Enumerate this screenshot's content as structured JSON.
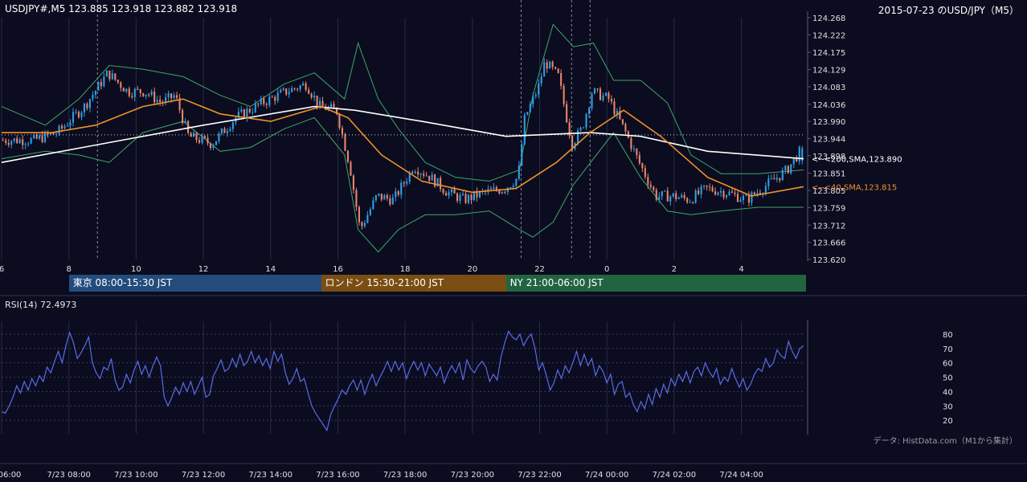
{
  "header": {
    "left": "USDJPY#,M5 123.885 123.918 123.882 123.918",
    "right": "2015-07-23 のUSD/JPY（M5）"
  },
  "colors": {
    "background": "#0b0c1f",
    "bull": "#2f9ee6",
    "bear": "#e8866e",
    "sma40": "#f0902a",
    "sma200": "#ffffff",
    "bollinger": "#3fa66a",
    "rsi": "#5a6be8",
    "tokyo": "#234c7d",
    "london": "#7a4e12",
    "ny": "#236440"
  },
  "sessions": [
    {
      "label": "東京 08:00-15:30 JST",
      "start_hour": 8,
      "end_hour": 15.5,
      "color": "#234c7d"
    },
    {
      "label": "ロンドン 15:30-21:00 JST",
      "start_hour": 15.5,
      "end_hour": 21,
      "color": "#7a4e12"
    },
    {
      "label": "NY 21:00-06:00 JST",
      "start_hour": 21,
      "end_hour": 30,
      "color": "#236440"
    }
  ],
  "rsi": {
    "label": "RSI(14) 72.4973",
    "ticks": [
      20,
      30,
      40,
      50,
      60,
      70,
      80
    ],
    "ylim": [
      10,
      90
    ],
    "series": [
      26,
      25,
      30,
      36,
      44,
      39,
      47,
      41,
      49,
      44,
      51,
      47,
      57,
      53,
      61,
      68,
      60,
      72,
      81,
      74,
      63,
      67,
      72,
      78,
      60,
      53,
      49,
      57,
      55,
      63,
      48,
      41,
      43,
      52,
      46,
      55,
      61,
      52,
      58,
      50,
      58,
      64,
      58,
      36,
      30,
      36,
      43,
      38,
      46,
      40,
      47,
      38,
      44,
      50,
      36,
      38,
      51,
      56,
      62,
      54,
      56,
      63,
      57,
      66,
      58,
      61,
      68,
      60,
      65,
      58,
      63,
      56,
      68,
      61,
      66,
      53,
      45,
      49,
      56,
      47,
      49,
      39,
      30,
      25,
      21,
      17,
      13,
      24,
      30,
      35,
      41,
      38,
      44,
      48,
      41,
      48,
      38,
      46,
      52,
      44,
      50,
      55,
      61,
      54,
      61,
      55,
      60,
      49,
      56,
      61,
      55,
      60,
      51,
      59,
      55,
      51,
      57,
      46,
      53,
      58,
      53,
      60,
      48,
      62,
      56,
      53,
      58,
      61,
      57,
      47,
      52,
      48,
      64,
      74,
      82,
      78,
      76,
      80,
      72,
      77,
      80,
      70,
      55,
      60,
      51,
      41,
      46,
      55,
      49,
      58,
      53,
      60,
      68,
      58,
      66,
      58,
      63,
      51,
      58,
      54,
      46,
      52,
      38,
      45,
      47,
      36,
      39,
      31,
      26,
      33,
      28,
      38,
      31,
      42,
      36,
      45,
      39,
      49,
      44,
      52,
      47,
      54,
      46,
      54,
      57,
      51,
      60,
      54,
      50,
      56,
      45,
      50,
      47,
      56,
      49,
      43,
      49,
      41,
      45,
      52,
      56,
      54,
      63,
      57,
      60,
      69,
      65,
      63,
      75,
      68,
      63,
      70,
      72
    ]
  },
  "chart_data": {
    "type": "candlestick",
    "title": "2015-07-23 のUSD/JPY（M5）",
    "symbol": "USDJPY#",
    "timeframe": "M5",
    "last_bar": {
      "open": 123.885,
      "high": 123.918,
      "low": 123.882,
      "close": 123.918
    },
    "ylim": [
      123.62,
      124.268
    ],
    "y_ticks": [
      124.268,
      124.222,
      124.175,
      124.129,
      124.083,
      124.036,
      123.99,
      123.944,
      123.898,
      123.851,
      123.805,
      123.759,
      123.712,
      123.666,
      123.62
    ],
    "x_hour_range": [
      6,
      29.85
    ],
    "x_ticks": [
      {
        "hour": 6,
        "label": "6"
      },
      {
        "hour": 8,
        "label": "8"
      },
      {
        "hour": 10,
        "label": "10"
      },
      {
        "hour": 12,
        "label": "12"
      },
      {
        "hour": 14,
        "label": "14"
      },
      {
        "hour": 16,
        "label": "16"
      },
      {
        "hour": 18,
        "label": "18"
      },
      {
        "hour": 20,
        "label": "20"
      },
      {
        "hour": 22,
        "label": "22"
      },
      {
        "hour": 24,
        "label": "0"
      },
      {
        "hour": 26,
        "label": "2"
      },
      {
        "hour": 28,
        "label": "4"
      }
    ],
    "bottom_ticks": [
      {
        "hour": 6,
        "label": "06:00"
      },
      {
        "hour": 8,
        "label": "7/23 08:00"
      },
      {
        "hour": 10,
        "label": "7/23 10:00"
      },
      {
        "hour": 12,
        "label": "7/23 12:00"
      },
      {
        "hour": 14,
        "label": "7/23 14:00"
      },
      {
        "hour": 16,
        "label": "7/23 16:00"
      },
      {
        "hour": 18,
        "label": "7/23 18:00"
      },
      {
        "hour": 20,
        "label": "7/23 20:00"
      },
      {
        "hour": 22,
        "label": "7/23 22:00"
      },
      {
        "hour": 24,
        "label": "7/24 00:00"
      },
      {
        "hour": 26,
        "label": "7/24 02:00"
      },
      {
        "hour": 28,
        "label": "7/24 04:00"
      }
    ],
    "reference_line": 123.954,
    "event_lines": [
      8.85,
      21.45,
      22.95,
      23.5
    ],
    "price_path": [
      {
        "hour": 6.0,
        "price": 123.94
      },
      {
        "hour": 7.0,
        "price": 123.94
      },
      {
        "hour": 7.7,
        "price": 123.96
      },
      {
        "hour": 8.5,
        "price": 124.03
      },
      {
        "hour": 9.2,
        "price": 124.12
      },
      {
        "hour": 9.8,
        "price": 124.07
      },
      {
        "hour": 10.3,
        "price": 124.07
      },
      {
        "hour": 10.8,
        "price": 124.04
      },
      {
        "hour": 11.2,
        "price": 124.06
      },
      {
        "hour": 11.6,
        "price": 123.95
      },
      {
        "hour": 12.3,
        "price": 123.93
      },
      {
        "hour": 13.0,
        "price": 124.0
      },
      {
        "hour": 13.8,
        "price": 124.04
      },
      {
        "hour": 14.5,
        "price": 124.07
      },
      {
        "hour": 15.1,
        "price": 124.09
      },
      {
        "hour": 15.5,
        "price": 124.03
      },
      {
        "hour": 16.0,
        "price": 124.02
      },
      {
        "hour": 16.4,
        "price": 123.87
      },
      {
        "hour": 16.7,
        "price": 123.7
      },
      {
        "hour": 17.2,
        "price": 123.79
      },
      {
        "hour": 17.7,
        "price": 123.78
      },
      {
        "hour": 18.3,
        "price": 123.87
      },
      {
        "hour": 18.8,
        "price": 123.84
      },
      {
        "hour": 19.3,
        "price": 123.8
      },
      {
        "hour": 19.8,
        "price": 123.78
      },
      {
        "hour": 20.4,
        "price": 123.8
      },
      {
        "hour": 21.0,
        "price": 123.81
      },
      {
        "hour": 21.4,
        "price": 123.84
      },
      {
        "hour": 21.6,
        "price": 124.0
      },
      {
        "hour": 22.0,
        "price": 124.08
      },
      {
        "hour": 22.2,
        "price": 124.15
      },
      {
        "hour": 22.6,
        "price": 124.11
      },
      {
        "hour": 23.0,
        "price": 123.93
      },
      {
        "hour": 23.3,
        "price": 123.97
      },
      {
        "hour": 23.6,
        "price": 124.07
      },
      {
        "hour": 24.1,
        "price": 124.05
      },
      {
        "hour": 24.6,
        "price": 123.96
      },
      {
        "hour": 25.0,
        "price": 123.88
      },
      {
        "hour": 25.5,
        "price": 123.79
      },
      {
        "hour": 26.0,
        "price": 123.79
      },
      {
        "hour": 26.5,
        "price": 123.78
      },
      {
        "hour": 27.0,
        "price": 123.81
      },
      {
        "hour": 27.6,
        "price": 123.8
      },
      {
        "hour": 28.2,
        "price": 123.78
      },
      {
        "hour": 28.8,
        "price": 123.82
      },
      {
        "hour": 29.4,
        "price": 123.86
      },
      {
        "hour": 29.85,
        "price": 123.918
      }
    ],
    "sma200": [
      {
        "hour": 6.0,
        "price": 123.88
      },
      {
        "hour": 9.0,
        "price": 123.93
      },
      {
        "hour": 12.0,
        "price": 123.98
      },
      {
        "hour": 15.3,
        "price": 124.03
      },
      {
        "hour": 16.5,
        "price": 124.02
      },
      {
        "hour": 18.5,
        "price": 123.99
      },
      {
        "hour": 21.0,
        "price": 123.95
      },
      {
        "hour": 23.5,
        "price": 123.96
      },
      {
        "hour": 25.0,
        "price": 123.95
      },
      {
        "hour": 27.0,
        "price": 123.91
      },
      {
        "hour": 29.85,
        "price": 123.89
      }
    ],
    "sma40": [
      {
        "hour": 6.0,
        "price": 123.96
      },
      {
        "hour": 7.5,
        "price": 123.96
      },
      {
        "hour": 8.8,
        "price": 123.98
      },
      {
        "hour": 10.2,
        "price": 124.03
      },
      {
        "hour": 11.4,
        "price": 124.05
      },
      {
        "hour": 12.5,
        "price": 124.01
      },
      {
        "hour": 14.0,
        "price": 123.99
      },
      {
        "hour": 15.5,
        "price": 124.03
      },
      {
        "hour": 16.3,
        "price": 124.0
      },
      {
        "hour": 17.3,
        "price": 123.9
      },
      {
        "hour": 18.5,
        "price": 123.83
      },
      {
        "hour": 20.0,
        "price": 123.8
      },
      {
        "hour": 21.3,
        "price": 123.81
      },
      {
        "hour": 22.5,
        "price": 123.88
      },
      {
        "hour": 23.5,
        "price": 123.96
      },
      {
        "hour": 24.5,
        "price": 124.02
      },
      {
        "hour": 25.6,
        "price": 123.95
      },
      {
        "hour": 27.0,
        "price": 123.84
      },
      {
        "hour": 28.3,
        "price": 123.79
      },
      {
        "hour": 29.85,
        "price": 123.815
      }
    ],
    "bollinger_upper": [
      {
        "hour": 6.0,
        "price": 124.03
      },
      {
        "hour": 7.3,
        "price": 123.98
      },
      {
        "hour": 8.3,
        "price": 124.05
      },
      {
        "hour": 9.2,
        "price": 124.14
      },
      {
        "hour": 10.2,
        "price": 124.13
      },
      {
        "hour": 11.4,
        "price": 124.11
      },
      {
        "hour": 12.5,
        "price": 124.06
      },
      {
        "hour": 13.4,
        "price": 124.03
      },
      {
        "hour": 14.4,
        "price": 124.09
      },
      {
        "hour": 15.3,
        "price": 124.12
      },
      {
        "hour": 16.2,
        "price": 124.05
      },
      {
        "hour": 16.6,
        "price": 124.2
      },
      {
        "hour": 17.2,
        "price": 124.05
      },
      {
        "hour": 17.8,
        "price": 123.97
      },
      {
        "hour": 18.6,
        "price": 123.88
      },
      {
        "hour": 19.5,
        "price": 123.84
      },
      {
        "hour": 20.5,
        "price": 123.83
      },
      {
        "hour": 21.4,
        "price": 123.86
      },
      {
        "hour": 21.8,
        "price": 124.06
      },
      {
        "hour": 22.4,
        "price": 124.25
      },
      {
        "hour": 23.0,
        "price": 124.19
      },
      {
        "hour": 23.6,
        "price": 124.2
      },
      {
        "hour": 24.2,
        "price": 124.1
      },
      {
        "hour": 25.0,
        "price": 124.1
      },
      {
        "hour": 25.8,
        "price": 124.04
      },
      {
        "hour": 26.5,
        "price": 123.9
      },
      {
        "hour": 27.4,
        "price": 123.85
      },
      {
        "hour": 28.5,
        "price": 123.85
      },
      {
        "hour": 29.85,
        "price": 123.86
      }
    ],
    "bollinger_lower": [
      {
        "hour": 6.0,
        "price": 123.89
      },
      {
        "hour": 7.3,
        "price": 123.91
      },
      {
        "hour": 8.3,
        "price": 123.9
      },
      {
        "hour": 9.2,
        "price": 123.88
      },
      {
        "hour": 10.2,
        "price": 123.96
      },
      {
        "hour": 11.4,
        "price": 123.99
      },
      {
        "hour": 12.5,
        "price": 123.91
      },
      {
        "hour": 13.4,
        "price": 123.92
      },
      {
        "hour": 14.4,
        "price": 123.97
      },
      {
        "hour": 15.3,
        "price": 124.0
      },
      {
        "hour": 16.2,
        "price": 123.9
      },
      {
        "hour": 16.6,
        "price": 123.7
      },
      {
        "hour": 17.2,
        "price": 123.64
      },
      {
        "hour": 17.8,
        "price": 123.7
      },
      {
        "hour": 18.6,
        "price": 123.74
      },
      {
        "hour": 19.5,
        "price": 123.74
      },
      {
        "hour": 20.5,
        "price": 123.75
      },
      {
        "hour": 21.4,
        "price": 123.7
      },
      {
        "hour": 21.8,
        "price": 123.68
      },
      {
        "hour": 22.4,
        "price": 123.72
      },
      {
        "hour": 23.0,
        "price": 123.82
      },
      {
        "hour": 23.6,
        "price": 123.89
      },
      {
        "hour": 24.2,
        "price": 123.96
      },
      {
        "hour": 25.0,
        "price": 123.84
      },
      {
        "hour": 25.8,
        "price": 123.75
      },
      {
        "hour": 26.5,
        "price": 123.74
      },
      {
        "hour": 27.4,
        "price": 123.75
      },
      {
        "hour": 28.5,
        "price": 123.76
      },
      {
        "hour": 29.85,
        "price": 123.76
      }
    ],
    "annotations": [
      {
        "text": "<--<200,SMA,123.890",
        "price": 123.89,
        "color": "#ffffff"
      },
      {
        "text": "<--<40,SMA,123.815",
        "price": 123.815,
        "color": "#f0902a"
      }
    ]
  },
  "credit": "データ: HistData.com（M1から集計）"
}
